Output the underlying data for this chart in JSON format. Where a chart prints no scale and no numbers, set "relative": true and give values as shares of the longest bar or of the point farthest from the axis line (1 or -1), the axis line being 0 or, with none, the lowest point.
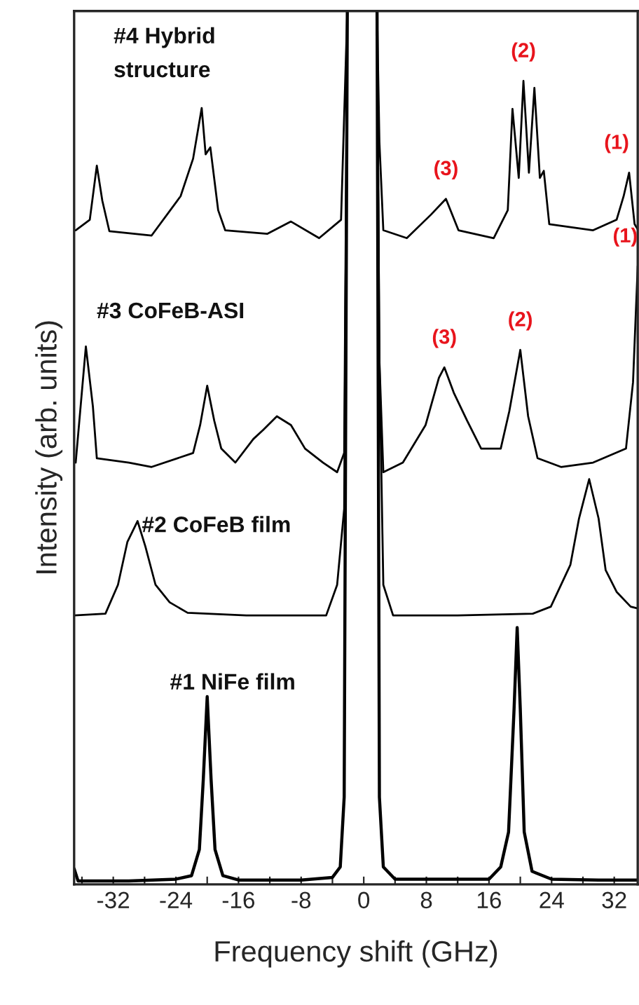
{
  "chart_data": {
    "type": "line",
    "relative": true,
    "xlabel": "Frequency shift (GHz)",
    "ylabel": "Intensity (arb. units)",
    "xlim": [
      -37,
      35
    ],
    "xticks": [
      {
        "value": -36,
        "label": null
      },
      -32,
      {
        "value": -28,
        "label": null
      },
      -24,
      {
        "value": -20,
        "label": null
      },
      -16,
      {
        "value": -12,
        "label": null
      },
      -8,
      {
        "value": -4,
        "label": null
      },
      0,
      {
        "value": 4,
        "label": null
      },
      8,
      {
        "value": 12,
        "label": null
      },
      16,
      {
        "value": 20,
        "label": null
      },
      24,
      {
        "value": 28,
        "label": null
      },
      32
    ],
    "grid": false,
    "line_style": "solid",
    "marker": "none",
    "series": [
      {
        "name": "#1 NiFe film",
        "color": "#000000",
        "x": [
          -37,
          -36.5,
          -30,
          -24,
          -22,
          -21,
          -20.5,
          -20,
          -19.5,
          -19,
          -18,
          -16,
          -8,
          -4,
          -3,
          -2.5,
          -2.1,
          0,
          1.7,
          2.0,
          2.5,
          4,
          10,
          16,
          17.5,
          18.5,
          19.2,
          19.6,
          20,
          20.5,
          21.5,
          24,
          30,
          35
        ],
        "values": [
          0.018,
          0.004,
          0.004,
          0.006,
          0.01,
          0.04,
          0.12,
          0.215,
          0.12,
          0.04,
          0.01,
          0.005,
          0.005,
          0.008,
          0.02,
          0.1,
          1.0,
          null,
          1.0,
          0.1,
          0.02,
          0.006,
          0.006,
          0.006,
          0.02,
          0.06,
          0.2,
          0.294,
          0.2,
          0.06,
          0.015,
          0.006,
          0.005,
          0.005
        ]
      },
      {
        "name": "#2 CoFeB film",
        "color": "#000000",
        "x": [
          -37,
          -33,
          -31.4,
          -30.2,
          -28.9,
          -27.9,
          -26.6,
          -24.8,
          -22.5,
          -15,
          -4.8,
          -3.4,
          -2.5,
          -2.1,
          0,
          1.7,
          2.0,
          2.5,
          3.75,
          12,
          21.6,
          23.9,
          26.4,
          27.5,
          28.8,
          30,
          30.9,
          32.3,
          34.1,
          35
        ],
        "values": [
          0.308,
          0.31,
          0.343,
          0.392,
          0.416,
          0.387,
          0.343,
          0.323,
          0.311,
          0.308,
          0.308,
          0.343,
          0.43,
          1.0,
          null,
          1.0,
          0.6,
          0.343,
          0.308,
          0.308,
          0.31,
          0.318,
          0.366,
          0.419,
          0.464,
          0.419,
          0.36,
          0.335,
          0.318,
          0.316
        ]
      },
      {
        "name": "#3 CoFeB-ASI",
        "color": "#000000",
        "x": [
          -36.8,
          -35.5,
          -34.6,
          -34.1,
          -30,
          -27.1,
          -21.8,
          -20.9,
          -20,
          -19.1,
          -18.2,
          -16.4,
          -14.1,
          -12.9,
          -11.1,
          -9.3,
          -7.5,
          -5.2,
          -3.4,
          -2.5,
          -2.1,
          0,
          1.7,
          2.0,
          2.5,
          5.0,
          7.9,
          9.6,
          10.3,
          11.5,
          13.2,
          15,
          17.5,
          18.6,
          20,
          21,
          22.2,
          25.2,
          29.3,
          33.5,
          34.4,
          35
        ],
        "values": [
          0.483,
          0.616,
          0.547,
          0.488,
          0.483,
          0.478,
          0.494,
          0.526,
          0.571,
          0.531,
          0.499,
          0.483,
          0.51,
          0.52,
          0.536,
          0.526,
          0.499,
          0.483,
          0.472,
          0.494,
          1.0,
          null,
          1.0,
          0.6,
          0.472,
          0.483,
          0.526,
          0.58,
          0.592,
          0.563,
          0.531,
          0.499,
          0.499,
          0.542,
          0.612,
          0.536,
          0.488,
          0.478,
          0.483,
          0.499,
          0.575,
          0.708
        ]
      },
      {
        "name": "#4 Hybrid\nstructure",
        "color": "#000000",
        "x": [
          -36.8,
          -35,
          -34.1,
          -33.4,
          -32.5,
          -27.1,
          -23.4,
          -21.8,
          -20.7,
          -20.2,
          -19.6,
          -18.6,
          -17.7,
          -12.3,
          -9.3,
          -5.7,
          -2.9,
          -2.1,
          0,
          1.7,
          2.0,
          2.5,
          5.5,
          8.6,
          10.5,
          12.1,
          16.6,
          18.4,
          19,
          19.8,
          20.4,
          21.1,
          21.8,
          22.5,
          23,
          23.7,
          29.3,
          32.3,
          33.2,
          33.9,
          34.6,
          35
        ],
        "values": [
          0.749,
          0.761,
          0.823,
          0.783,
          0.748,
          0.743,
          0.788,
          0.831,
          0.889,
          0.836,
          0.844,
          0.772,
          0.749,
          0.745,
          0.759,
          0.74,
          0.761,
          1.0,
          null,
          1.0,
          0.85,
          0.749,
          0.74,
          0.767,
          0.785,
          0.749,
          0.74,
          0.772,
          0.888,
          0.809,
          0.92,
          0.815,
          0.912,
          0.809,
          0.817,
          0.756,
          0.749,
          0.761,
          0.788,
          0.815,
          0.756,
          0.75
        ]
      }
    ],
    "annotations": [
      {
        "text": "(2)",
        "x": 20.4,
        "y": 0.92
      },
      {
        "text": "(3)",
        "x": 10.5,
        "y": 0.785
      },
      {
        "text": "(1)",
        "x": 33.9,
        "y": 0.815
      },
      {
        "text": "(1)",
        "x": 35,
        "y": 0.708
      },
      {
        "text": "(2)",
        "x": 20,
        "y": 0.612
      },
      {
        "text": "(3)",
        "x": 10.3,
        "y": 0.592
      }
    ]
  }
}
